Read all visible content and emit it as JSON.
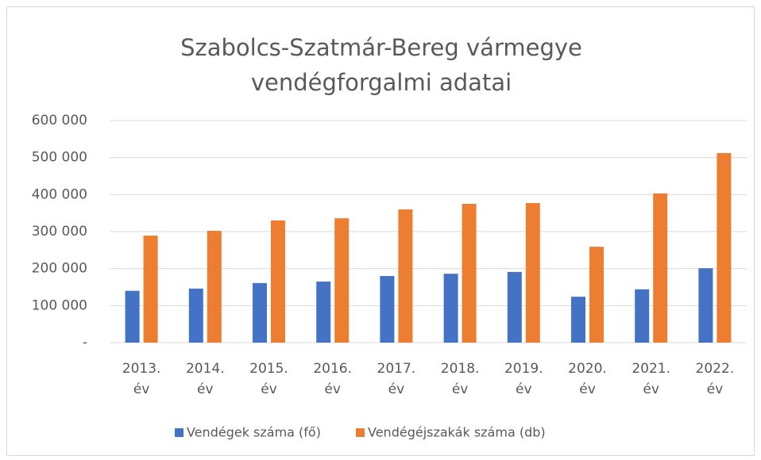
{
  "chart_data": {
    "type": "bar",
    "title": "Szabolcs-Szatmár-Bereg vármegye vendégforgalmi adatai",
    "categories": [
      "2013. év",
      "2014. év",
      "2015. év",
      "2016. év",
      "2017. év",
      "2018. év",
      "2019. év",
      "2020. év",
      "2021. év",
      "2022. év"
    ],
    "series": [
      {
        "name": "Vendégek száma (fő)",
        "color": "#4472c4",
        "values": [
          140000,
          146000,
          161000,
          165000,
          180000,
          186000,
          191000,
          124000,
          144000,
          201000
        ]
      },
      {
        "name": "Vendégéjszakák száma  (db)",
        "color": "#ed7d31",
        "values": [
          289000,
          302000,
          330000,
          336000,
          360000,
          375000,
          377000,
          259000,
          403000,
          512000
        ]
      }
    ],
    "ylim": [
      0,
      600000
    ],
    "yticks": [
      {
        "value": 0,
        "label": "-"
      },
      {
        "value": 100000,
        "label": "100 000"
      },
      {
        "value": 200000,
        "label": "200 000"
      },
      {
        "value": 300000,
        "label": "300 000"
      },
      {
        "value": 400000,
        "label": "400 000"
      },
      {
        "value": 500000,
        "label": "500 000"
      },
      {
        "value": 600000,
        "label": "600 000"
      }
    ],
    "grid": true,
    "legend": "bottom"
  }
}
